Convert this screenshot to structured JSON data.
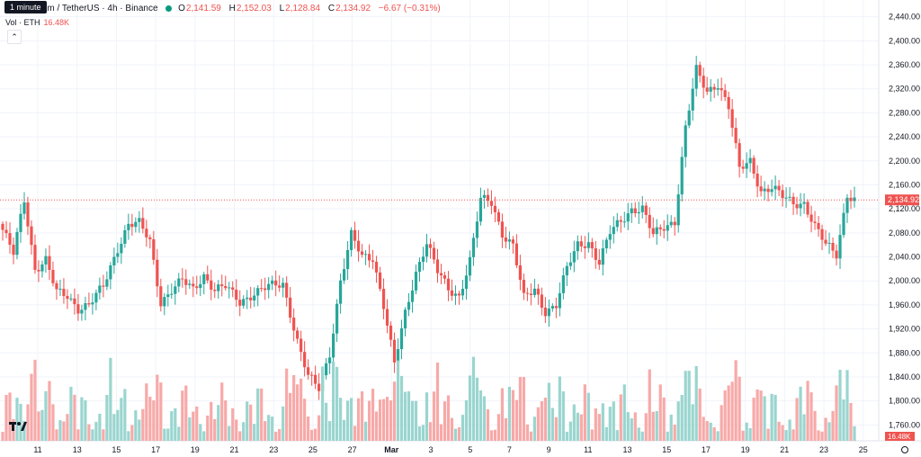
{
  "header": {
    "symbol": "um / TetherUS · 4h · Binance",
    "tooltip": "1 minute",
    "ohlc": {
      "o_label": "O",
      "o": "2,141.59",
      "h_label": "H",
      "h": "2,152.03",
      "l_label": "L",
      "l": "2,128.84",
      "c_label": "C",
      "c": "2,134.92",
      "change": "−6.67 (−0.31%)"
    },
    "status_color": "#089981"
  },
  "volume": {
    "label": "Vol · ETH",
    "value": "16.48K"
  },
  "icons": {
    "collapse": "chevron-up-icon",
    "logo": "tradingview-logo-icon"
  },
  "colors": {
    "up": "#26a69a",
    "down": "#ef5350",
    "vol_up": "#9ad5cf",
    "vol_down": "#f7a9a8"
  },
  "chart_data": {
    "type": "candlestick",
    "y_ticks": [
      "2,440.00",
      "2,400.00",
      "2,360.00",
      "2,320.00",
      "2,280.00",
      "2,240.00",
      "2,200.00",
      "2,160.00",
      "2,120.00",
      "2,080.00",
      "2,040.00",
      "2,000.00",
      "1,960.00",
      "1,920.00",
      "1,880.00",
      "1,840.00",
      "1,800.00",
      "1,760.00"
    ],
    "ylim": [
      1750,
      2450
    ],
    "x_ticks": [
      "11",
      "13",
      "15",
      "17",
      "19",
      "21",
      "23",
      "25",
      "27",
      "Mar",
      "3",
      "5",
      "7",
      "9",
      "11",
      "13",
      "15",
      "17",
      "19",
      "21",
      "23",
      "25"
    ],
    "last_price": 2134.92,
    "last_price_label": "2,134.92",
    "volume_badge": "16.48K",
    "close_path": [
      [
        0,
        2085
      ],
      [
        3,
        2045
      ],
      [
        6,
        2135
      ],
      [
        9,
        2020
      ],
      [
        12,
        2035
      ],
      [
        15,
        1980
      ],
      [
        18,
        1975
      ],
      [
        21,
        1955
      ],
      [
        24,
        1960
      ],
      [
        28,
        1990
      ],
      [
        32,
        2055
      ],
      [
        35,
        2095
      ],
      [
        38,
        2095
      ],
      [
        41,
        2065
      ],
      [
        44,
        1965
      ],
      [
        47,
        1985
      ],
      [
        50,
        2000
      ],
      [
        53,
        1985
      ],
      [
        56,
        2010
      ],
      [
        59,
        1985
      ],
      [
        62,
        1990
      ],
      [
        66,
        1965
      ],
      [
        70,
        1980
      ],
      [
        74,
        1990
      ],
      [
        78,
        1995
      ],
      [
        82,
        1900
      ],
      [
        85,
        1840
      ],
      [
        88,
        1820
      ],
      [
        91,
        1880
      ],
      [
        94,
        2000
      ],
      [
        97,
        2075
      ],
      [
        100,
        2040
      ],
      [
        103,
        2040
      ],
      [
        106,
        1960
      ],
      [
        109,
        1860
      ],
      [
        112,
        1945
      ],
      [
        115,
        2015
      ],
      [
        118,
        2065
      ],
      [
        121,
        2015
      ],
      [
        124,
        1985
      ],
      [
        127,
        1975
      ],
      [
        130,
        2035
      ],
      [
        133,
        2135
      ],
      [
        136,
        2130
      ],
      [
        139,
        2080
      ],
      [
        142,
        2060
      ],
      [
        145,
        1970
      ],
      [
        148,
        1985
      ],
      [
        151,
        1950
      ],
      [
        154,
        1960
      ],
      [
        157,
        2020
      ],
      [
        160,
        2060
      ],
      [
        163,
        2065
      ],
      [
        166,
        2030
      ],
      [
        169,
        2080
      ],
      [
        172,
        2100
      ],
      [
        175,
        2120
      ],
      [
        178,
        2120
      ],
      [
        181,
        2075
      ],
      [
        184,
        2090
      ],
      [
        187,
        2100
      ],
      [
        190,
        2255
      ],
      [
        193,
        2350
      ],
      [
        196,
        2315
      ],
      [
        199,
        2330
      ],
      [
        202,
        2290
      ],
      [
        205,
        2185
      ],
      [
        208,
        2200
      ],
      [
        211,
        2150
      ],
      [
        214,
        2155
      ],
      [
        217,
        2140
      ],
      [
        220,
        2130
      ],
      [
        223,
        2130
      ],
      [
        226,
        2090
      ],
      [
        229,
        2060
      ],
      [
        232,
        2045
      ],
      [
        235,
        2145
      ],
      [
        237,
        2135
      ]
    ]
  }
}
